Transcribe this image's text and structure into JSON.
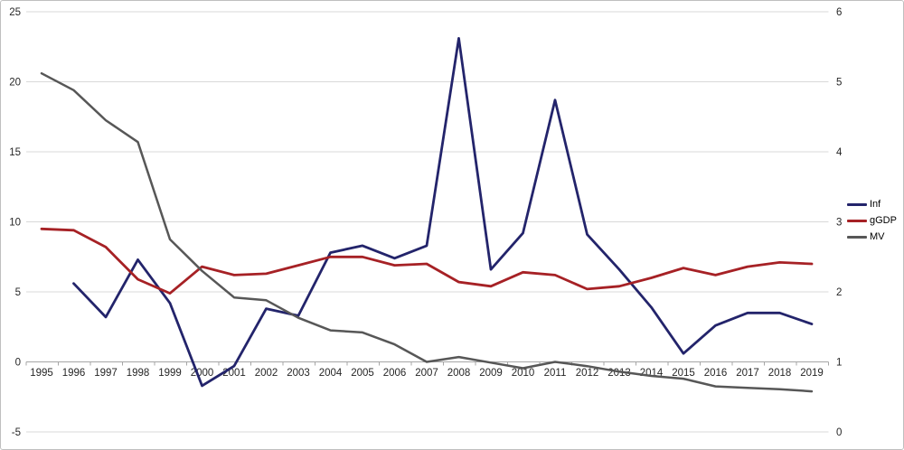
{
  "window": {
    "background": "#ffffff",
    "frame_border_color": "#bfbfbf"
  },
  "chart_data": {
    "type": "line",
    "title": "",
    "xlabel": "",
    "ylabel_left": "",
    "ylabel_right": "",
    "grid": true,
    "gridline_color": "#d9d9d9",
    "axis_line_color": "#a6a6a6",
    "label_color": "#262626",
    "legend_position": "right",
    "x": [
      1995,
      1996,
      1997,
      1998,
      1999,
      2000,
      2001,
      2002,
      2003,
      2004,
      2005,
      2006,
      2007,
      2008,
      2009,
      2010,
      2011,
      2012,
      2013,
      2014,
      2015,
      2016,
      2017,
      2018,
      2019
    ],
    "left_axis": {
      "min": -5,
      "max": 25,
      "ticks": [
        25,
        20,
        15,
        10,
        5,
        0,
        -5
      ]
    },
    "right_axis": {
      "min": 0,
      "max": 6,
      "ticks": [
        6,
        5,
        4,
        3,
        2,
        1,
        0
      ]
    },
    "series": [
      {
        "name": "Inf",
        "axis": "left",
        "color": "#23246b",
        "values": [
          null,
          5.6,
          3.2,
          7.3,
          4.2,
          -1.7,
          -0.3,
          3.8,
          3.3,
          7.8,
          8.3,
          7.4,
          8.3,
          23.1,
          6.6,
          9.2,
          18.7,
          9.1,
          6.6,
          3.9,
          0.6,
          2.6,
          3.5,
          3.5,
          2.7
        ]
      },
      {
        "name": "gGDP",
        "axis": "left",
        "color": "#a62125",
        "values": [
          9.5,
          9.4,
          8.2,
          5.9,
          4.9,
          6.8,
          6.2,
          6.3,
          6.9,
          7.5,
          7.5,
          6.9,
          7.0,
          5.7,
          5.4,
          6.4,
          6.2,
          5.2,
          5.4,
          6.0,
          6.7,
          6.2,
          6.8,
          7.1,
          7.0
        ]
      },
      {
        "name": "MV",
        "axis": "right",
        "color": "#575757",
        "values": [
          5.12,
          4.88,
          4.45,
          4.14,
          2.75,
          2.3,
          1.92,
          1.88,
          1.63,
          1.45,
          1.42,
          1.25,
          1.0,
          1.07,
          0.99,
          0.91,
          1.0,
          0.94,
          0.86,
          0.8,
          0.76,
          0.65,
          0.63,
          0.61,
          0.58
        ]
      }
    ]
  }
}
